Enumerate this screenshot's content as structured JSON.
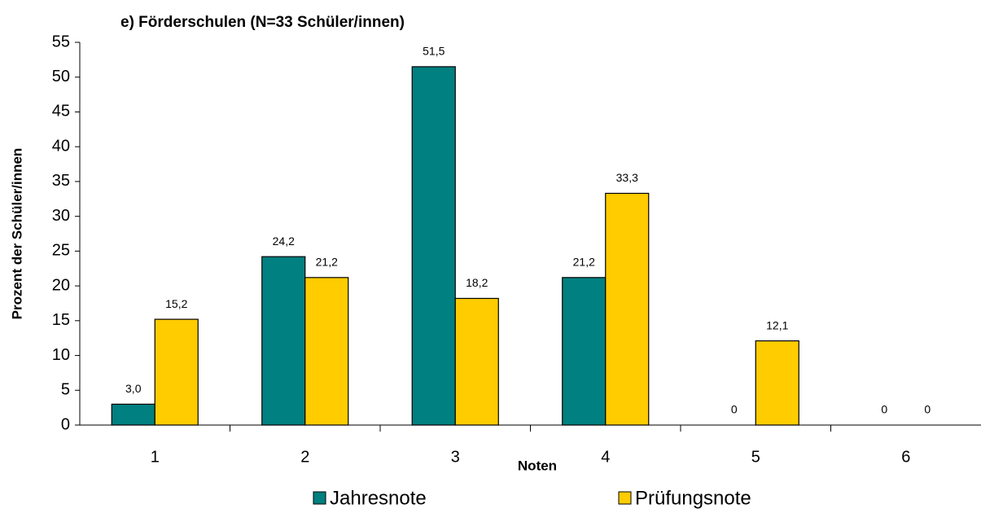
{
  "chart_data": {
    "type": "bar",
    "title": "e) Förderschulen (N=33 Schüler/innen)",
    "x_label": "Noten",
    "y_label": "Prozent der Schüler/innen",
    "categories": [
      "1",
      "2",
      "3",
      "4",
      "5",
      "6"
    ],
    "series": [
      {
        "name": "Jahresnote",
        "color": "#008080",
        "values": [
          3.0,
          24.2,
          51.5,
          21.2,
          0,
          0
        ],
        "value_labels": [
          "3,0",
          "24,2",
          "51,5",
          "21,2",
          "0",
          "0"
        ]
      },
      {
        "name": "Prüfungsnote",
        "color": "#ffcc00",
        "values": [
          15.2,
          21.2,
          18.2,
          33.3,
          12.1,
          0
        ],
        "value_labels": [
          "15,2",
          "21,2",
          "18,2",
          "33,3",
          "12,1",
          "0"
        ]
      }
    ],
    "ylim": [
      0,
      55
    ],
    "yticks": [
      0,
      5,
      10,
      15,
      20,
      25,
      30,
      35,
      40,
      45,
      50,
      55
    ],
    "legend": "bottom"
  }
}
